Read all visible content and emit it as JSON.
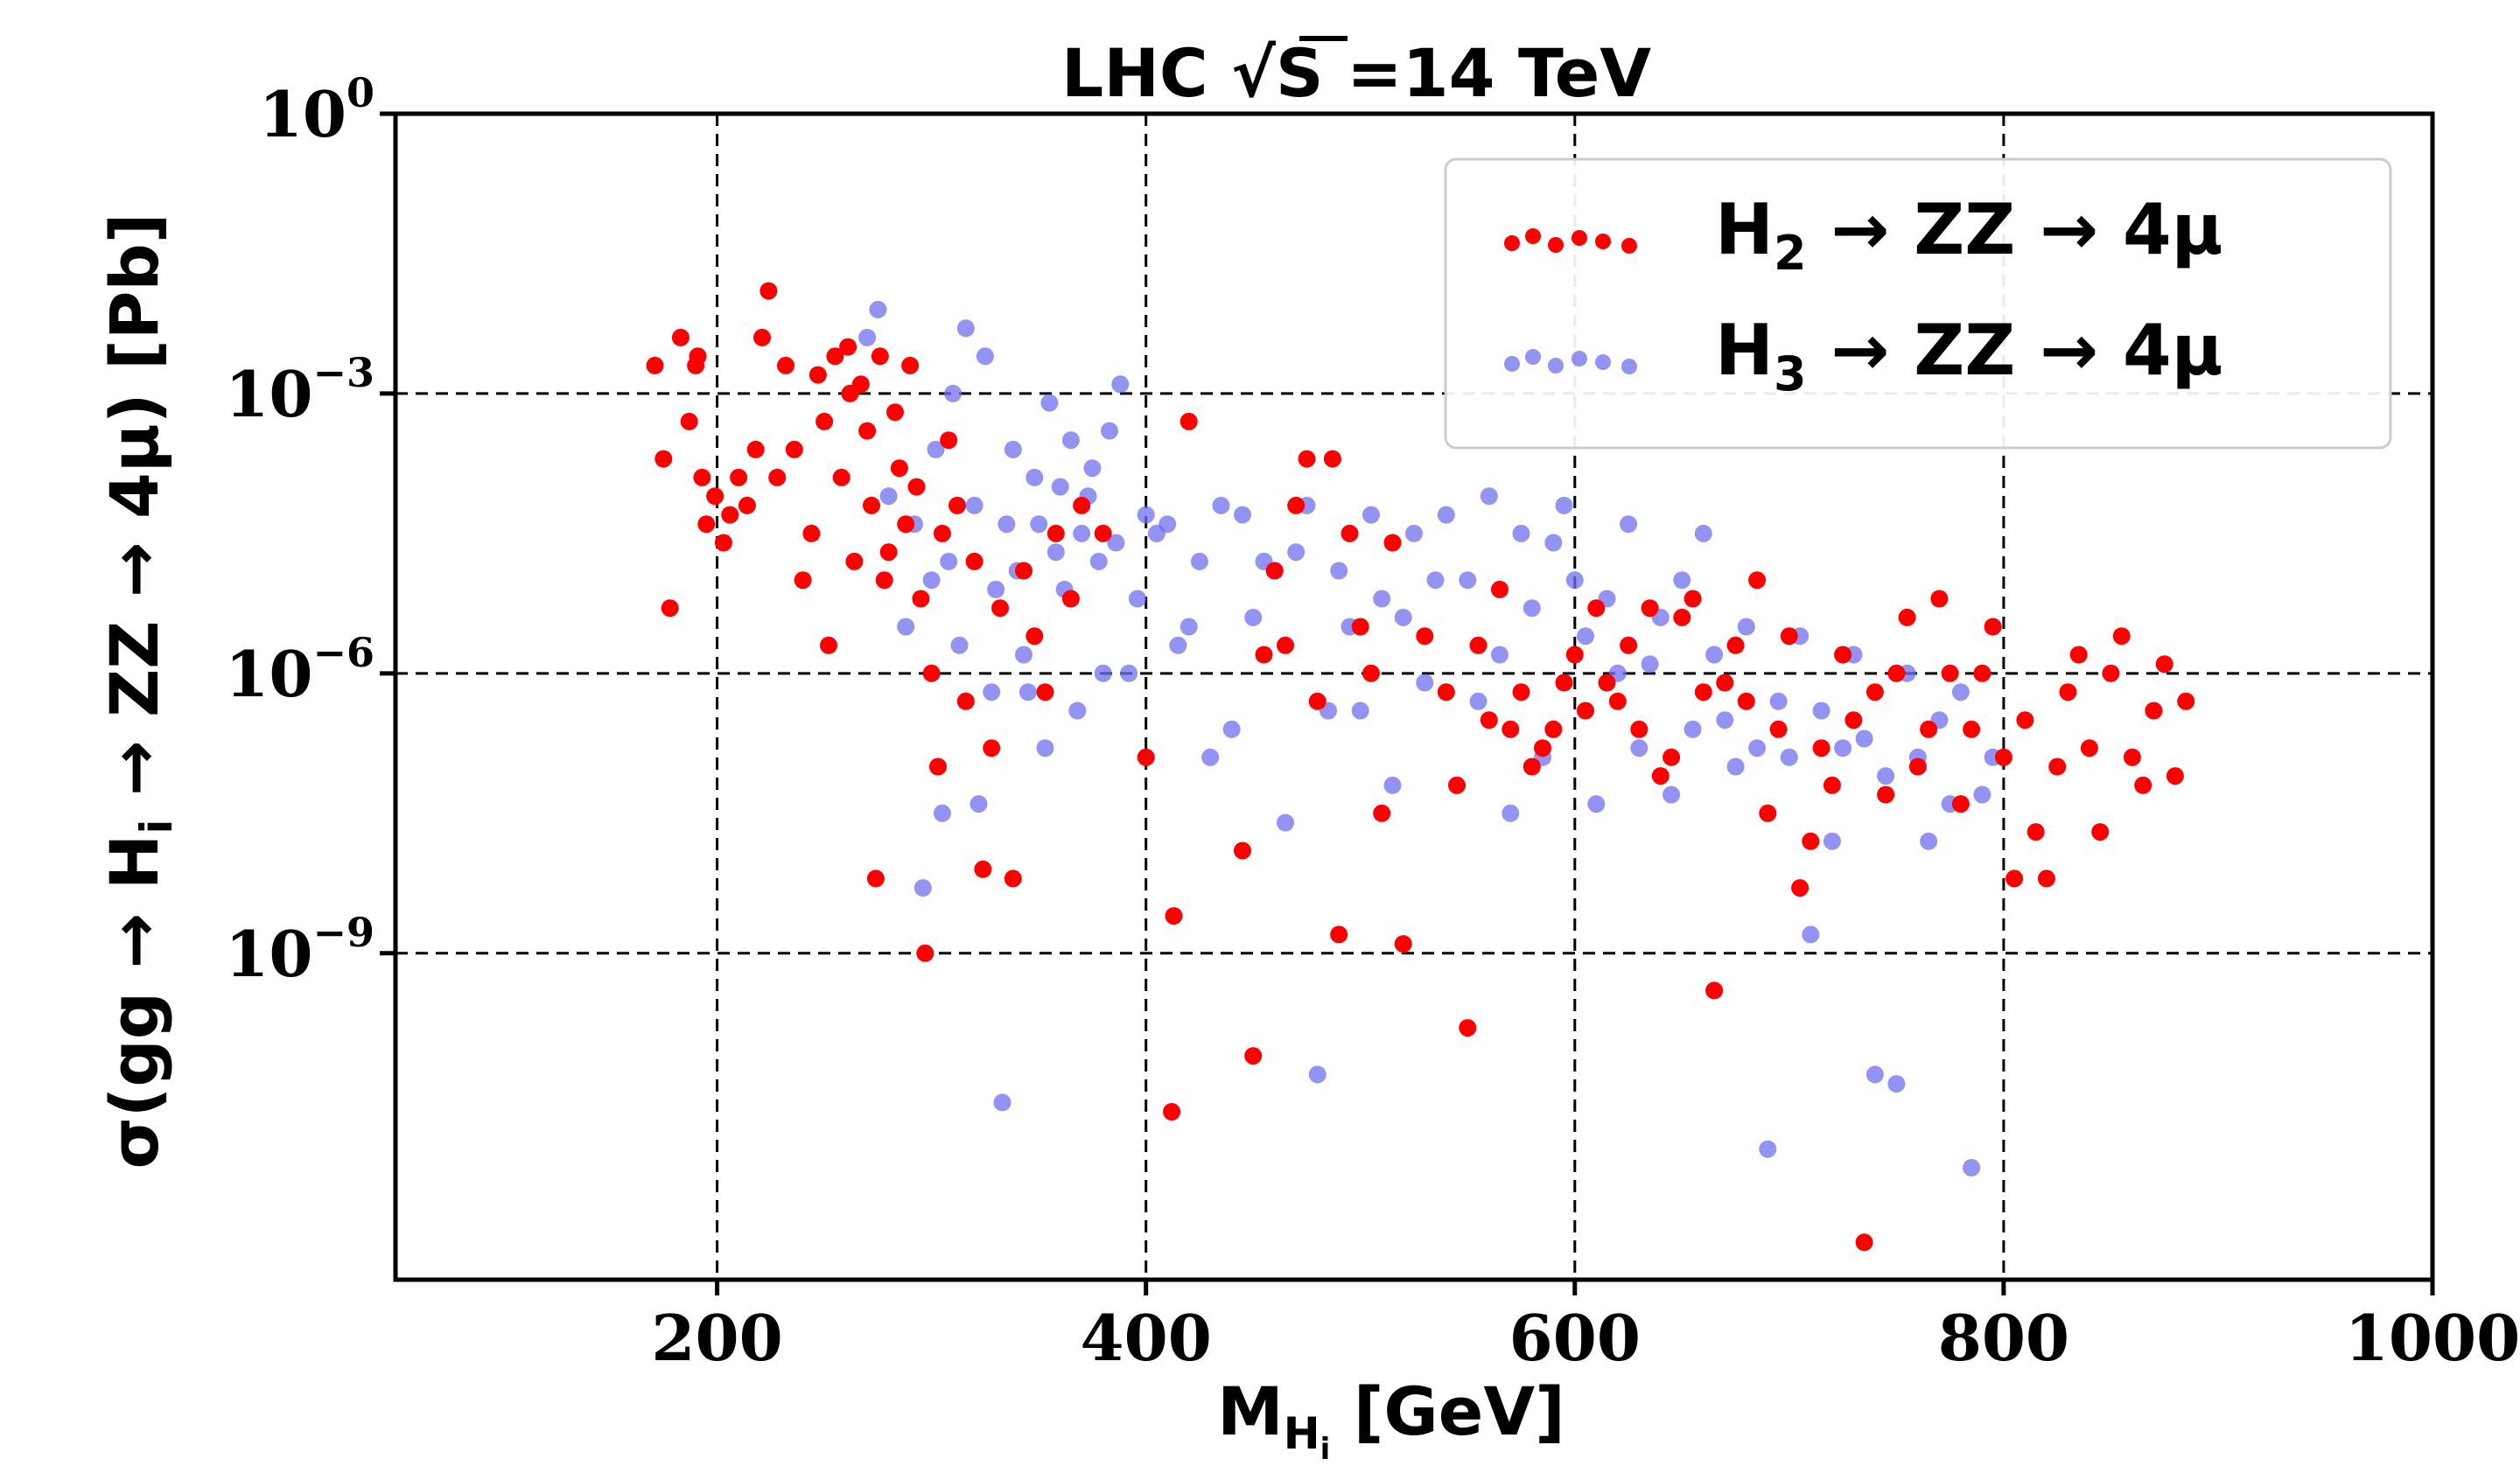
{
  "chart_data": {
    "type": "scatter",
    "title_prefix": "LHC ",
    "title_sqrt_symbol": "√",
    "title_sqrt_arg": "S",
    "title_suffix": " =14 TeV",
    "xlabel_main": "M",
    "xlabel_sub": "H",
    "xlabel_subsub": "i",
    "xlabel_unit": " [GeV]",
    "ylabel": "σ(gg → H_i → ZZ → 4μ) [Pb]",
    "ylabel_parts": {
      "pre": "σ(gg → H",
      "sub": "i",
      "post": " → ZZ → 4μ) [Pb]"
    },
    "xlim": [
      50,
      1000
    ],
    "ylim_log10": [
      -12.5,
      0
    ],
    "x_ticks": [
      200,
      400,
      600,
      800,
      1000
    ],
    "x_tick_labels": [
      "200",
      "400",
      "600",
      "800",
      "1000"
    ],
    "y_ticks_log10": [
      0,
      -3,
      -6,
      -9
    ],
    "y_tick_base": "10",
    "y_tick_exponents": [
      "0",
      "−3",
      "−6",
      "−9"
    ],
    "grid": true,
    "legend_position": "top-right",
    "series": [
      {
        "name": "H2",
        "legend_main": "H",
        "legend_sub": "2",
        "legend_rest": " → ZZ → 4μ",
        "color": "#ff0000",
        "points": [
          [
            171,
            -2.7
          ],
          [
            175,
            -3.7
          ],
          [
            178,
            -5.3
          ],
          [
            183,
            -2.4
          ],
          [
            187,
            -3.3
          ],
          [
            190,
            -2.7
          ],
          [
            191,
            -2.6
          ],
          [
            193,
            -3.9
          ],
          [
            195,
            -4.4
          ],
          [
            199,
            -4.1
          ],
          [
            203,
            -4.6
          ],
          [
            206,
            -4.3
          ],
          [
            210,
            -3.9
          ],
          [
            214,
            -4.2
          ],
          [
            218,
            -3.6
          ],
          [
            221,
            -2.4
          ],
          [
            224,
            -1.9
          ],
          [
            228,
            -3.9
          ],
          [
            232,
            -2.7
          ],
          [
            236,
            -3.6
          ],
          [
            240,
            -5.0
          ],
          [
            244,
            -4.5
          ],
          [
            247,
            -2.8
          ],
          [
            250,
            -3.3
          ],
          [
            252,
            -5.7
          ],
          [
            255,
            -2.6
          ],
          [
            258,
            -3.9
          ],
          [
            261,
            -2.5
          ],
          [
            262,
            -3.0
          ],
          [
            264,
            -4.8
          ],
          [
            267,
            -2.9
          ],
          [
            270,
            -3.4
          ],
          [
            272,
            -4.2
          ],
          [
            274,
            -8.2
          ],
          [
            276,
            -2.6
          ],
          [
            278,
            -5.0
          ],
          [
            280,
            -4.7
          ],
          [
            283,
            -3.2
          ],
          [
            285,
            -3.8
          ],
          [
            288,
            -4.4
          ],
          [
            290,
            -2.7
          ],
          [
            293,
            -4.0
          ],
          [
            295,
            -5.2
          ],
          [
            297,
            -9.0
          ],
          [
            300,
            -6.0
          ],
          [
            303,
            -7.0
          ],
          [
            305,
            -4.5
          ],
          [
            308,
            -3.5
          ],
          [
            312,
            -4.2
          ],
          [
            316,
            -6.3
          ],
          [
            320,
            -4.8
          ],
          [
            324,
            -8.1
          ],
          [
            328,
            -6.8
          ],
          [
            332,
            -5.3
          ],
          [
            338,
            -8.2
          ],
          [
            343,
            -4.9
          ],
          [
            348,
            -5.6
          ],
          [
            353,
            -6.2
          ],
          [
            358,
            -4.5
          ],
          [
            365,
            -5.2
          ],
          [
            370,
            -4.2
          ],
          [
            380,
            -4.5
          ],
          [
            400,
            -6.9
          ],
          [
            412,
            -10.7
          ],
          [
            413,
            -8.6
          ],
          [
            420,
            -3.3
          ],
          [
            445,
            -7.9
          ],
          [
            450,
            -10.1
          ],
          [
            455,
            -5.8
          ],
          [
            460,
            -4.9
          ],
          [
            465,
            -5.7
          ],
          [
            470,
            -4.2
          ],
          [
            475,
            -3.7
          ],
          [
            480,
            -6.3
          ],
          [
            487,
            -3.7
          ],
          [
            490,
            -8.8
          ],
          [
            495,
            -4.5
          ],
          [
            500,
            -5.5
          ],
          [
            505,
            -6.0
          ],
          [
            510,
            -7.5
          ],
          [
            515,
            -4.6
          ],
          [
            520,
            -8.9
          ],
          [
            530,
            -5.6
          ],
          [
            540,
            -6.2
          ],
          [
            545,
            -7.2
          ],
          [
            550,
            -9.8
          ],
          [
            555,
            -5.7
          ],
          [
            560,
            -6.5
          ],
          [
            565,
            -5.1
          ],
          [
            570,
            -6.6
          ],
          [
            575,
            -6.2
          ],
          [
            580,
            -7.0
          ],
          [
            585,
            -6.8
          ],
          [
            590,
            -6.6
          ],
          [
            595,
            -6.1
          ],
          [
            600,
            -5.8
          ],
          [
            605,
            -6.4
          ],
          [
            610,
            -5.3
          ],
          [
            615,
            -6.1
          ],
          [
            620,
            -6.3
          ],
          [
            625,
            -5.7
          ],
          [
            630,
            -6.6
          ],
          [
            635,
            -5.3
          ],
          [
            640,
            -7.1
          ],
          [
            645,
            -6.9
          ],
          [
            650,
            -5.4
          ],
          [
            655,
            -5.2
          ],
          [
            660,
            -6.2
          ],
          [
            665,
            -9.4
          ],
          [
            670,
            -6.1
          ],
          [
            675,
            -5.7
          ],
          [
            680,
            -6.3
          ],
          [
            685,
            -5.0
          ],
          [
            690,
            -7.5
          ],
          [
            695,
            -6.6
          ],
          [
            700,
            -5.6
          ],
          [
            705,
            -8.3
          ],
          [
            710,
            -7.8
          ],
          [
            715,
            -6.8
          ],
          [
            720,
            -7.2
          ],
          [
            725,
            -5.8
          ],
          [
            730,
            -6.5
          ],
          [
            735,
            -12.1
          ],
          [
            740,
            -6.2
          ],
          [
            745,
            -7.3
          ],
          [
            750,
            -6.0
          ],
          [
            755,
            -5.4
          ],
          [
            760,
            -7.0
          ],
          [
            765,
            -6.6
          ],
          [
            770,
            -5.2
          ],
          [
            775,
            -6.0
          ],
          [
            780,
            -7.4
          ],
          [
            785,
            -6.6
          ],
          [
            790,
            -6.0
          ],
          [
            795,
            -5.5
          ],
          [
            800,
            -6.9
          ],
          [
            805,
            -8.2
          ],
          [
            810,
            -6.5
          ],
          [
            815,
            -7.7
          ],
          [
            820,
            -8.2
          ],
          [
            825,
            -7.0
          ],
          [
            830,
            -6.2
          ],
          [
            835,
            -5.8
          ],
          [
            840,
            -6.8
          ],
          [
            845,
            -7.7
          ],
          [
            850,
            -6.0
          ],
          [
            855,
            -5.6
          ],
          [
            860,
            -6.9
          ],
          [
            865,
            -7.2
          ],
          [
            870,
            -6.4
          ],
          [
            875,
            -5.9
          ],
          [
            880,
            -7.1
          ],
          [
            885,
            -6.3
          ]
        ]
      },
      {
        "name": "H3",
        "legend_main": "H",
        "legend_sub": "3",
        "legend_rest": " → ZZ → 4μ",
        "color": "#6f6ff0",
        "points": [
          [
            270,
            -2.4
          ],
          [
            275,
            -2.1
          ],
          [
            280,
            -4.1
          ],
          [
            285,
            -3.8
          ],
          [
            288,
            -5.5
          ],
          [
            292,
            -4.4
          ],
          [
            296,
            -8.3
          ],
          [
            300,
            -5.0
          ],
          [
            302,
            -3.6
          ],
          [
            305,
            -7.5
          ],
          [
            308,
            -4.8
          ],
          [
            310,
            -3.0
          ],
          [
            313,
            -5.7
          ],
          [
            316,
            -2.3
          ],
          [
            320,
            -4.2
          ],
          [
            322,
            -7.4
          ],
          [
            325,
            -2.6
          ],
          [
            328,
            -6.2
          ],
          [
            330,
            -5.1
          ],
          [
            333,
            -10.6
          ],
          [
            335,
            -4.4
          ],
          [
            338,
            -3.6
          ],
          [
            340,
            -4.9
          ],
          [
            343,
            -5.8
          ],
          [
            345,
            -6.2
          ],
          [
            348,
            -3.9
          ],
          [
            350,
            -4.4
          ],
          [
            353,
            -6.8
          ],
          [
            355,
            -3.1
          ],
          [
            358,
            -4.7
          ],
          [
            360,
            -4.0
          ],
          [
            362,
            -5.1
          ],
          [
            365,
            -3.5
          ],
          [
            368,
            -6.4
          ],
          [
            370,
            -4.5
          ],
          [
            373,
            -4.1
          ],
          [
            375,
            -3.8
          ],
          [
            378,
            -4.8
          ],
          [
            380,
            -6.0
          ],
          [
            383,
            -3.4
          ],
          [
            386,
            -4.6
          ],
          [
            388,
            -2.9
          ],
          [
            392,
            -6.0
          ],
          [
            396,
            -5.2
          ],
          [
            400,
            -4.3
          ],
          [
            405,
            -4.5
          ],
          [
            410,
            -4.4
          ],
          [
            415,
            -5.7
          ],
          [
            420,
            -5.5
          ],
          [
            425,
            -4.8
          ],
          [
            430,
            -6.9
          ],
          [
            435,
            -4.2
          ],
          [
            440,
            -6.6
          ],
          [
            445,
            -4.3
          ],
          [
            450,
            -5.4
          ],
          [
            455,
            -4.8
          ],
          [
            460,
            -4.9
          ],
          [
            465,
            -7.6
          ],
          [
            470,
            -4.7
          ],
          [
            475,
            -4.2
          ],
          [
            480,
            -10.3
          ],
          [
            485,
            -6.4
          ],
          [
            490,
            -4.9
          ],
          [
            495,
            -5.5
          ],
          [
            500,
            -6.4
          ],
          [
            505,
            -4.3
          ],
          [
            510,
            -5.2
          ],
          [
            515,
            -7.2
          ],
          [
            520,
            -5.4
          ],
          [
            525,
            -4.5
          ],
          [
            530,
            -6.1
          ],
          [
            535,
            -5.0
          ],
          [
            540,
            -4.3
          ],
          [
            545,
            -7.2
          ],
          [
            550,
            -5.0
          ],
          [
            555,
            -6.3
          ],
          [
            560,
            -4.1
          ],
          [
            565,
            -5.8
          ],
          [
            570,
            -7.5
          ],
          [
            575,
            -4.5
          ],
          [
            580,
            -5.3
          ],
          [
            585,
            -6.9
          ],
          [
            590,
            -4.6
          ],
          [
            595,
            -4.2
          ],
          [
            600,
            -5.0
          ],
          [
            605,
            -5.6
          ],
          [
            610,
            -7.4
          ],
          [
            615,
            -5.2
          ],
          [
            620,
            -6.0
          ],
          [
            625,
            -4.4
          ],
          [
            630,
            -6.8
          ],
          [
            635,
            -5.9
          ],
          [
            640,
            -5.4
          ],
          [
            645,
            -7.3
          ],
          [
            650,
            -5.0
          ],
          [
            655,
            -6.6
          ],
          [
            660,
            -4.5
          ],
          [
            665,
            -5.8
          ],
          [
            670,
            -6.5
          ],
          [
            675,
            -7.0
          ],
          [
            680,
            -5.5
          ],
          [
            685,
            -6.8
          ],
          [
            690,
            -11.1
          ],
          [
            695,
            -6.3
          ],
          [
            700,
            -6.9
          ],
          [
            705,
            -5.6
          ],
          [
            710,
            -8.8
          ],
          [
            715,
            -6.4
          ],
          [
            720,
            -7.8
          ],
          [
            725,
            -6.8
          ],
          [
            730,
            -5.8
          ],
          [
            735,
            -6.7
          ],
          [
            740,
            -10.3
          ],
          [
            745,
            -7.1
          ],
          [
            750,
            -10.4
          ],
          [
            755,
            -6.0
          ],
          [
            760,
            -6.9
          ],
          [
            765,
            -7.8
          ],
          [
            770,
            -6.5
          ],
          [
            775,
            -7.4
          ],
          [
            780,
            -6.2
          ],
          [
            785,
            -11.3
          ],
          [
            790,
            -7.3
          ],
          [
            795,
            -6.9
          ]
        ]
      }
    ]
  }
}
